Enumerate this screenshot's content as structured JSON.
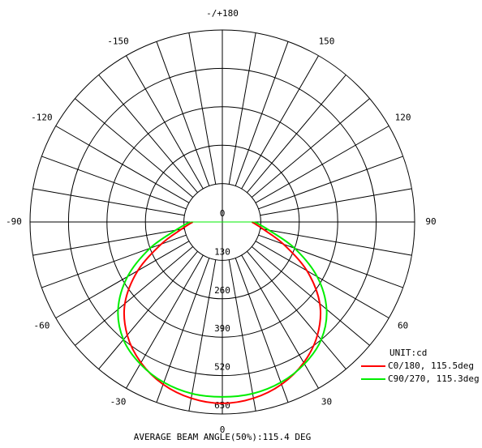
{
  "chart_data": {
    "type": "polar",
    "unit": "UNIT:cd",
    "footer": "AVERAGE BEAM ANGLE(50%):115.4 DEG",
    "rlim": [
      0,
      650
    ],
    "rticks": [
      0,
      130,
      260,
      390,
      520,
      650
    ],
    "spoke_step": 10,
    "thetaticks": [
      {
        "value": 180,
        "label": "-/+180"
      },
      150,
      120,
      90,
      60,
      30,
      0,
      -30,
      -60,
      -90,
      -120,
      -150
    ],
    "angles": [
      -90,
      -80,
      -70,
      -60,
      -50,
      -40,
      -30,
      -20,
      -10,
      0,
      10,
      20,
      30,
      40,
      50,
      60,
      70,
      80,
      90
    ],
    "series": [
      {
        "name": "C0/180, 115.5deg",
        "color": "#ff0000",
        "values": [
          100,
          140,
          220,
          330,
          430,
          500,
          550,
          585,
          606,
          614,
          606,
          585,
          550,
          500,
          430,
          330,
          220,
          140,
          100
        ]
      },
      {
        "name": "C90/270, 115.3deg",
        "color": "#00ee00",
        "values": [
          110,
          160,
          260,
          370,
          460,
          520,
          555,
          578,
          590,
          592,
          590,
          578,
          555,
          520,
          460,
          370,
          260,
          160,
          110
        ]
      }
    ]
  }
}
